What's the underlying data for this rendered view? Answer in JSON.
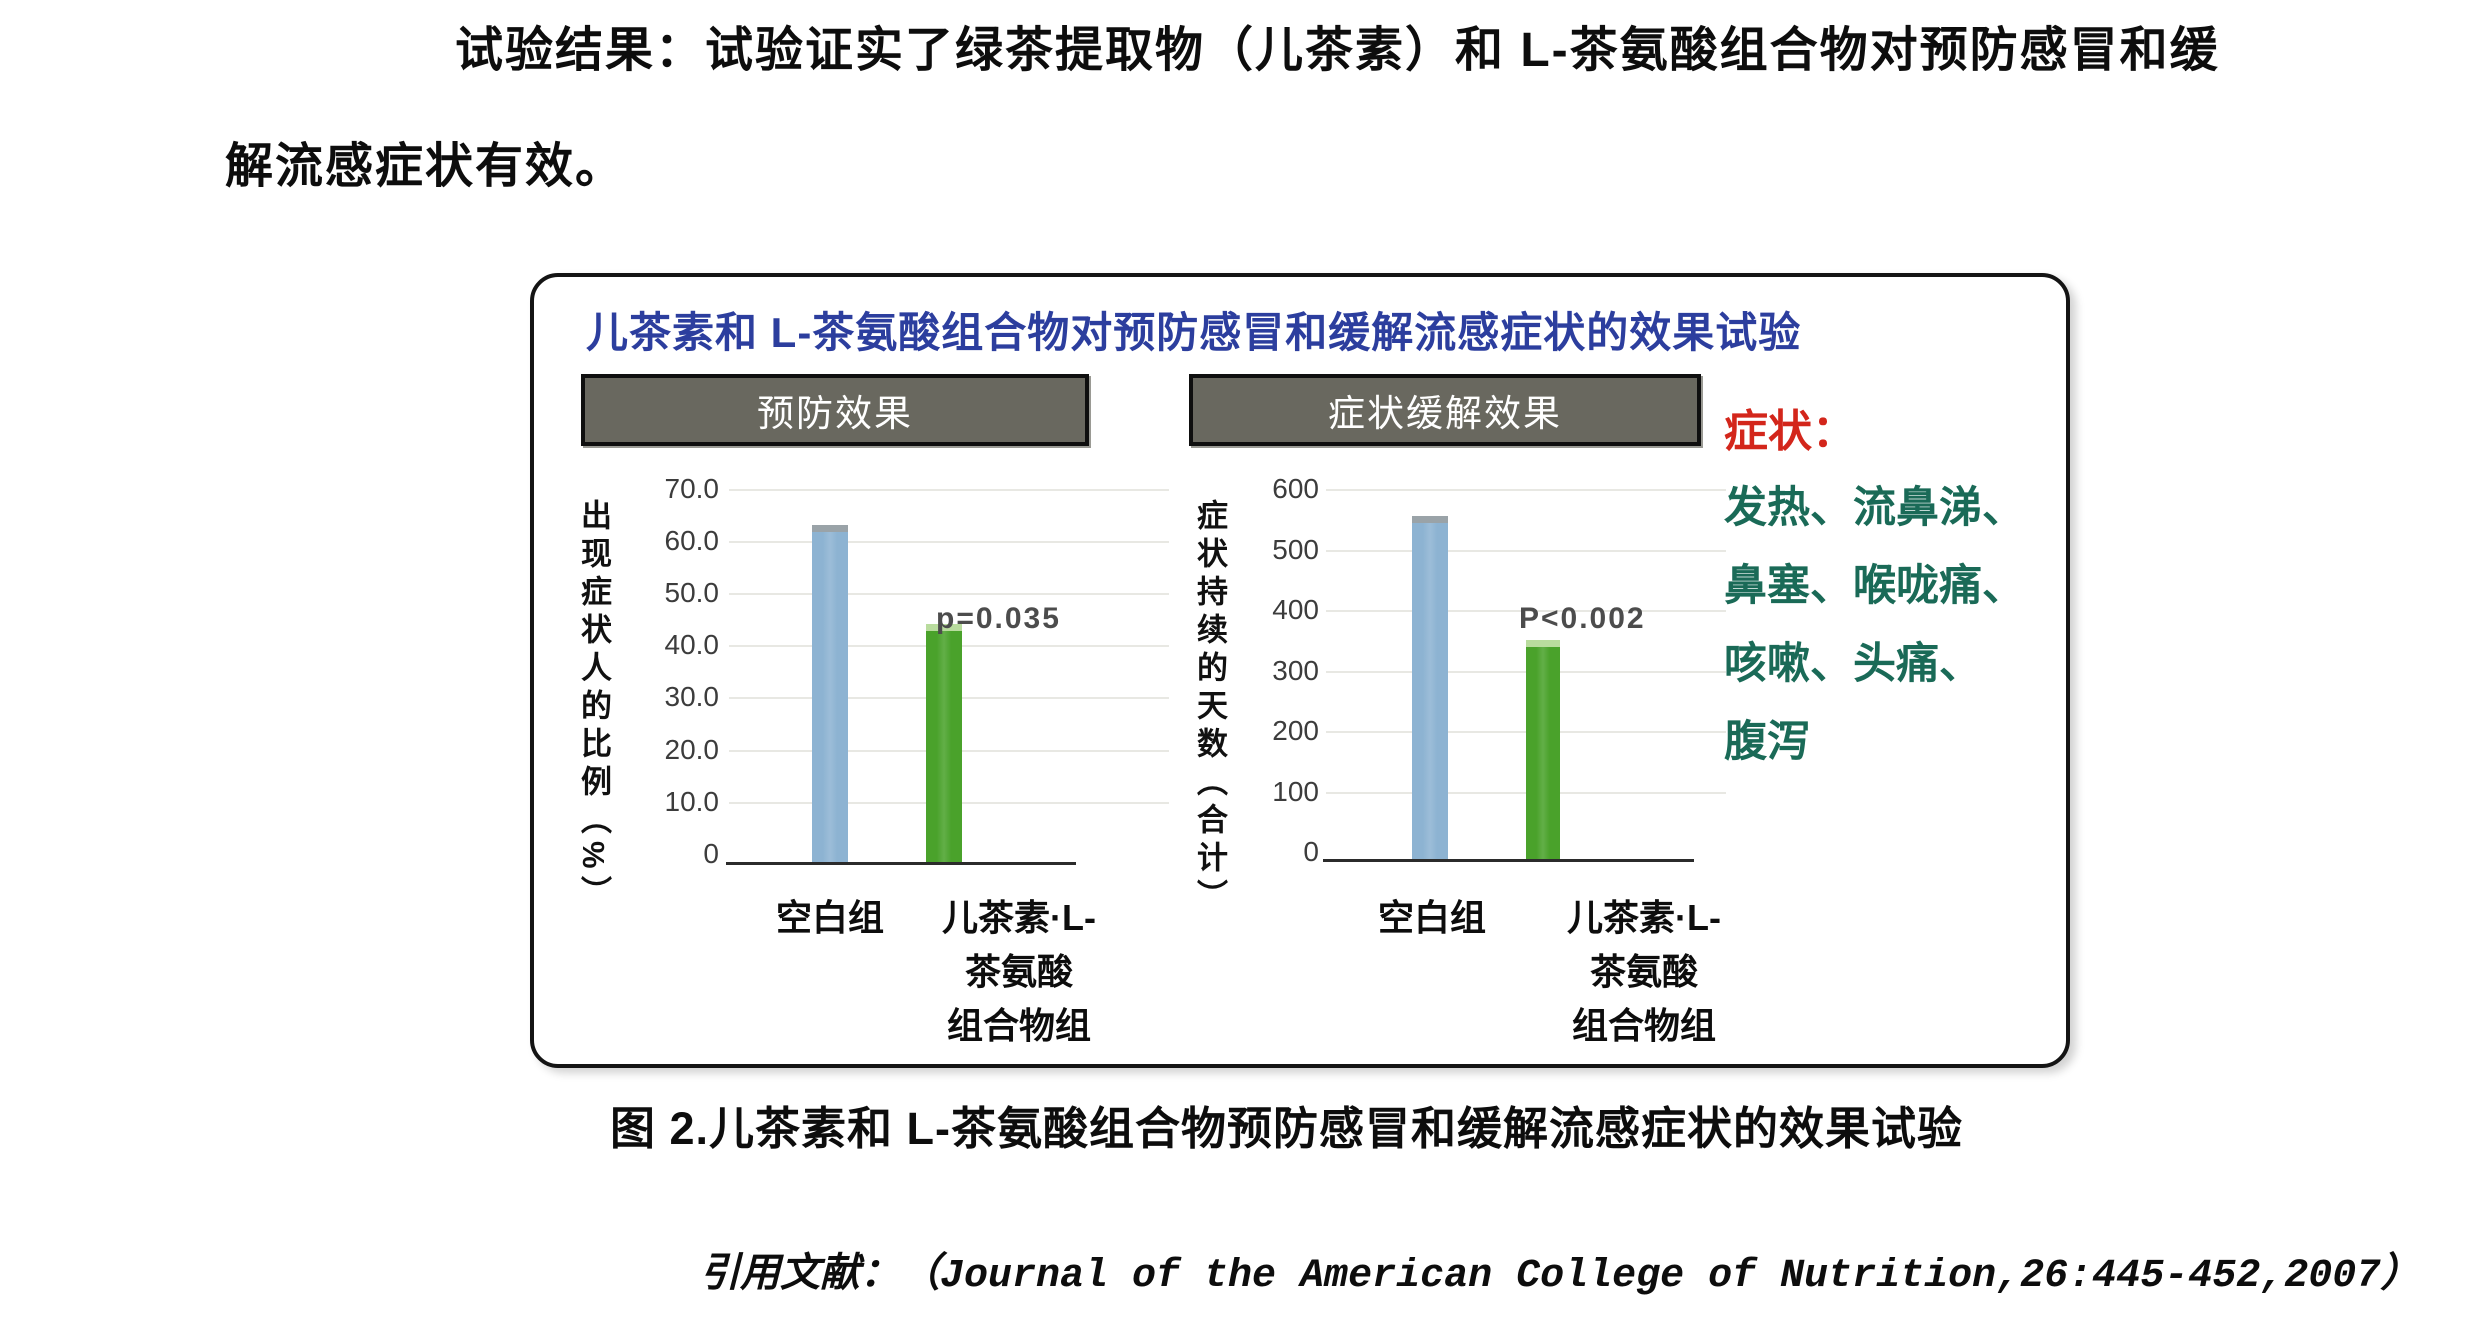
{
  "paragraph": {
    "line1": "试验结果：试验证实了绿茶提取物（儿茶素）和 L-茶氨酸组合物对预防感冒和缓",
    "line2": "解流感症状有效。"
  },
  "figure": {
    "title": "儿茶素和 L-茶氨酸组合物对预防感冒和缓解流感症状的效果试验",
    "symptoms": {
      "heading": "症状：",
      "lines": [
        "发热、流鼻涕、",
        "鼻塞、喉咙痛、",
        "咳嗽、头痛、",
        "腹泻"
      ]
    }
  },
  "caption": "图 2.儿茶素和 L-茶氨酸组合物预防感冒和缓解流感症状的效果试验",
  "citation": "引用文献：（Journal of the American College of Nutrition,26:445-452,2007）",
  "colors": {
    "bar_blue": "#8db3d2",
    "bar_blue_cap": "#9aa3a8",
    "bar_green": "#4aa22b",
    "bar_green_cap": "#b9dc9e",
    "title_blue": "#2c3e9e",
    "symptom_green": "#1a6a57",
    "symptom_red": "#d3261b",
    "header_gray": "#69685f"
  },
  "chart_data": [
    {
      "type": "bar",
      "title": "预防效果",
      "categories": [
        "空白组",
        "儿茶素·L-茶氨酸\n组合物组"
      ],
      "values": [
        63,
        44
      ],
      "xlabel": "",
      "ylabel": "出现症状人的比例（%）",
      "ylim": [
        0,
        70
      ],
      "yticks": [
        "70.0",
        "60.0",
        "50.0",
        "40.0",
        "30.0",
        "20.0",
        "10.0",
        "0"
      ],
      "grid": true,
      "annotation": "p=0.035",
      "bar_colors": [
        "#8db3d2",
        "#4aa22b"
      ]
    },
    {
      "type": "bar",
      "title": "症状缓解效果",
      "categories": [
        "空白组",
        "儿茶素·L-茶氨酸\n组合物组"
      ],
      "values": [
        555,
        350
      ],
      "xlabel": "",
      "ylabel": "症状持续的天数（合计）",
      "ylim": [
        0,
        600
      ],
      "yticks": [
        "600",
        "500",
        "400",
        "300",
        "200",
        "100",
        "0"
      ],
      "grid": true,
      "annotation": "P<0.002",
      "bar_colors": [
        "#8db3d2",
        "#4aa22b"
      ]
    }
  ]
}
